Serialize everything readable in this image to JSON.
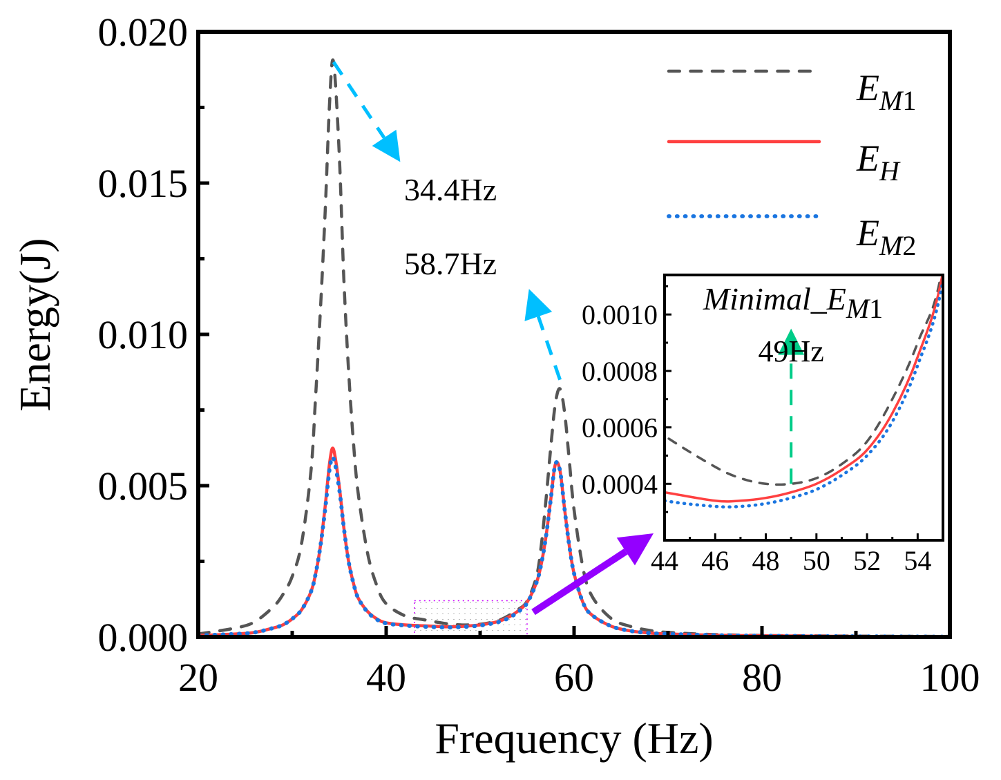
{
  "chart_data": {
    "type": "line",
    "xlabel": "Frequency (Hz)",
    "ylabel": "Energy(J)",
    "xlim": [
      20,
      100
    ],
    "ylim": [
      0,
      0.02
    ],
    "xticks": [
      "20",
      "40",
      "60",
      "80",
      "100"
    ],
    "yticks": [
      "0.000",
      "0.005",
      "0.010",
      "0.015",
      "0.020"
    ],
    "legend_position": "top-right",
    "x": [
      20,
      24,
      26,
      28,
      29,
      30,
      31,
      32,
      32.5,
      33,
      33.5,
      34,
      34.4,
      35,
      35.5,
      36,
      36.5,
      37,
      38,
      39,
      40,
      42,
      44,
      46,
      47,
      48,
      49,
      50,
      51,
      52,
      53,
      54,
      55,
      56,
      56.5,
      57,
      57.5,
      58,
      58.5,
      59,
      59.5,
      60,
      61,
      62,
      64,
      66,
      68,
      70,
      75,
      80,
      90,
      100
    ],
    "series": [
      {
        "name": "E_M1",
        "legend_main": "E",
        "legend_sub": "M",
        "legend_num": "1",
        "color": "#555555",
        "style": "dash",
        "values": [
          0.0001,
          0.0003,
          0.0005,
          0.001,
          0.0014,
          0.002,
          0.0031,
          0.0055,
          0.008,
          0.0108,
          0.014,
          0.0178,
          0.019,
          0.016,
          0.0118,
          0.0088,
          0.0065,
          0.0048,
          0.0028,
          0.0017,
          0.0011,
          0.0007,
          0.00057,
          0.00046,
          0.00042,
          0.0004,
          0.0004,
          0.00042,
          0.00047,
          0.00055,
          0.0007,
          0.0009,
          0.00118,
          0.002,
          0.003,
          0.0045,
          0.0062,
          0.0077,
          0.0082,
          0.0074,
          0.0058,
          0.0042,
          0.0022,
          0.0013,
          0.0006,
          0.00035,
          0.00022,
          0.00015,
          8e-05,
          5e-05,
          3e-05,
          2e-05
        ]
      },
      {
        "name": "E_H",
        "legend_main": "E",
        "legend_sub": "H",
        "legend_num": "",
        "color": "#ff4040",
        "style": "solid",
        "values": [
          5e-05,
          0.0001,
          0.00015,
          0.0003,
          0.0004,
          0.0006,
          0.0009,
          0.0015,
          0.0021,
          0.003,
          0.0043,
          0.0058,
          0.0062,
          0.005,
          0.0036,
          0.0025,
          0.0018,
          0.0013,
          0.00085,
          0.0006,
          0.00047,
          0.0004,
          0.00037,
          0.00034,
          0.00034,
          0.00035,
          0.00037,
          0.0004,
          0.00045,
          0.00052,
          0.00065,
          0.00085,
          0.00115,
          0.0018,
          0.0024,
          0.0033,
          0.0045,
          0.0057,
          0.0055,
          0.0042,
          0.003,
          0.0021,
          0.0011,
          0.0007,
          0.00035,
          0.0002,
          0.00013,
          0.0001,
          6e-05,
          4e-05,
          2e-05,
          1e-05
        ]
      },
      {
        "name": "E_M2",
        "legend_main": "E",
        "legend_sub": "M",
        "legend_num": "2",
        "color": "#1a75e0",
        "style": "dot",
        "values": [
          5e-05,
          0.0001,
          0.00015,
          0.0003,
          0.0004,
          0.0006,
          0.0009,
          0.0015,
          0.0021,
          0.003,
          0.0042,
          0.0056,
          0.0059,
          0.0049,
          0.0036,
          0.0025,
          0.0018,
          0.0013,
          0.00083,
          0.00058,
          0.00045,
          0.00038,
          0.00034,
          0.00032,
          0.00032,
          0.00033,
          0.00035,
          0.00038,
          0.00043,
          0.0005,
          0.00062,
          0.00082,
          0.00112,
          0.0018,
          0.0024,
          0.0033,
          0.0045,
          0.0057,
          0.0055,
          0.0042,
          0.003,
          0.0021,
          0.0011,
          0.0007,
          0.00035,
          0.0002,
          0.00013,
          0.0001,
          6e-05,
          4e-05,
          2e-05,
          1e-05
        ]
      }
    ],
    "annotations": [
      {
        "text": "34.4Hz",
        "arrow_from": [
          34.4,
          0.019
        ],
        "arrow_to": [
          41.5,
          0.0157
        ],
        "color": "#00bfff"
      },
      {
        "text": "58.7Hz",
        "arrow_from": [
          58.5,
          0.0085
        ],
        "arrow_to": [
          55.2,
          0.0115
        ],
        "color": "#00bfff"
      }
    ],
    "zoom_region": {
      "x": [
        43,
        55
      ],
      "y": [
        0,
        0.0012
      ],
      "border_color": "#cc00ff"
    },
    "zoom_arrow_color": "#9400ff",
    "inset": {
      "title_main": "Minimal_E",
      "title_sub": "M",
      "title_num": "1",
      "xlim": [
        44,
        55
      ],
      "ylim": [
        0.0002,
        0.00114
      ],
      "xticks": [
        "44",
        "46",
        "48",
        "50",
        "52",
        "54"
      ],
      "yticks": [
        "0.0004",
        "0.0006",
        "0.0008",
        "0.0010"
      ],
      "annotation": {
        "text": "49Hz",
        "x": 49,
        "from": 0.0004,
        "to": 0.00095,
        "color": "#00cc88"
      }
    }
  }
}
